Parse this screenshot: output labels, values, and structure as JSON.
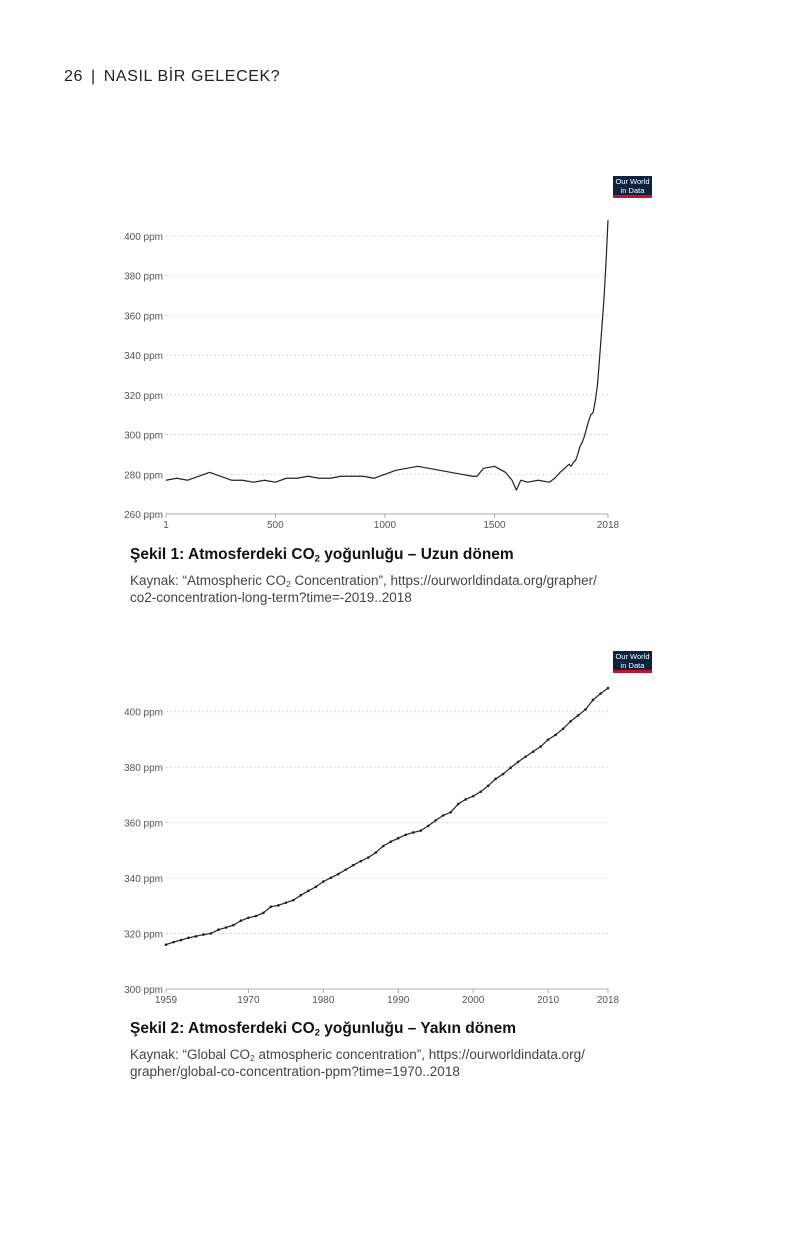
{
  "page": {
    "number": "26",
    "separator": "|",
    "running_title": "NASIL BİR GELECEK?"
  },
  "logo": {
    "line1": "Our World",
    "line2": "in Data"
  },
  "figure1": {
    "caption_prefix": "Şekil 1: Atmosferdeki CO",
    "caption_sub": "2",
    "caption_suffix": " yoğunluğu – Uzun dönem",
    "source_line1_prefix": "Kaynak: “Atmospheric CO",
    "source_line1_sub": "2",
    "source_line1_suffix": " Concentration”, https://ourworldindata.org/grapher/",
    "source_line2": "co2-concentration-long-term?time=-2019..2018"
  },
  "figure2": {
    "caption_prefix": "Şekil 2: Atmosferdeki CO",
    "caption_sub": "2",
    "caption_suffix": " yoğunluğu – Yakın dönem",
    "source_line1_prefix": "Kaynak: “Global CO",
    "source_line1_sub": "2",
    "source_line1_suffix": " atmospheric concentration”, https://ourworldindata.org/",
    "source_line2": "grapher/global-co-concentration-ppm?time=1970..2018"
  },
  "chart_data": [
    {
      "type": "line",
      "title": "",
      "xlabel": "",
      "ylabel": "",
      "xlim": [
        1,
        2018
      ],
      "ylim": [
        260,
        405
      ],
      "y_unit": "ppm",
      "x_ticks": [
        1,
        500,
        1000,
        1500,
        2018
      ],
      "y_ticks": [
        260,
        280,
        300,
        320,
        340,
        360,
        380,
        400
      ],
      "grid": "horizontal-dotted",
      "line_color": "#222222",
      "series": [
        {
          "x": [
            1,
            50,
            100,
            150,
            200,
            250,
            300,
            350,
            400,
            450,
            500,
            550,
            600,
            650,
            700,
            750,
            800,
            850,
            900,
            950,
            1000,
            1050,
            1100,
            1150,
            1200,
            1250,
            1300,
            1350,
            1400,
            1420,
            1450,
            1500,
            1550,
            1580,
            1600,
            1620,
            1650,
            1700,
            1750,
            1775,
            1800,
            1820,
            1840,
            1850,
            1860,
            1870,
            1880,
            1890,
            1900,
            1910,
            1920,
            1930,
            1940,
            1950,
            1960,
            1970,
            1980,
            1990,
            2000,
            2010,
            2018
          ],
          "y": [
            277,
            278,
            277,
            279,
            281,
            279,
            277,
            277,
            276,
            277,
            276,
            278,
            278,
            279,
            278,
            278,
            279,
            279,
            279,
            278,
            280,
            282,
            283,
            284,
            283,
            282,
            281,
            280,
            279,
            279,
            283,
            284,
            281,
            277,
            272,
            277,
            276,
            277,
            276,
            278,
            281,
            283,
            285,
            284,
            286,
            287,
            290,
            294,
            296,
            299,
            303,
            307,
            310,
            311,
            317,
            325,
            339,
            354,
            369,
            389,
            408
          ]
        }
      ]
    },
    {
      "type": "line",
      "title": "",
      "xlabel": "",
      "ylabel": "",
      "xlim": [
        1959,
        2018
      ],
      "ylim": [
        300,
        410
      ],
      "y_unit": "ppm",
      "x_ticks": [
        1959,
        1970,
        1980,
        1990,
        2000,
        2010,
        2018
      ],
      "y_ticks": [
        300,
        320,
        340,
        360,
        380,
        400
      ],
      "grid": "horizontal-dotted",
      "markers": true,
      "line_color": "#222222",
      "series": [
        {
          "x": [
            1959,
            1960,
            1961,
            1962,
            1963,
            1964,
            1965,
            1966,
            1967,
            1968,
            1969,
            1970,
            1971,
            1972,
            1973,
            1974,
            1975,
            1976,
            1977,
            1978,
            1979,
            1980,
            1981,
            1982,
            1983,
            1984,
            1985,
            1986,
            1987,
            1988,
            1989,
            1990,
            1991,
            1992,
            1993,
            1994,
            1995,
            1996,
            1997,
            1998,
            1999,
            2000,
            2001,
            2002,
            2003,
            2004,
            2005,
            2006,
            2007,
            2008,
            2009,
            2010,
            2011,
            2012,
            2013,
            2014,
            2015,
            2016,
            2017,
            2018
          ],
          "y": [
            315.97,
            316.91,
            317.64,
            318.45,
            318.99,
            319.62,
            320.04,
            321.38,
            322.16,
            323.04,
            324.62,
            325.68,
            326.32,
            327.45,
            329.68,
            330.18,
            331.11,
            332.04,
            333.83,
            335.4,
            336.84,
            338.75,
            340.11,
            341.45,
            343.05,
            344.65,
            346.12,
            347.42,
            349.19,
            351.57,
            353.12,
            354.39,
            355.61,
            356.45,
            357.1,
            358.83,
            360.82,
            362.61,
            363.73,
            366.7,
            368.38,
            369.55,
            371.14,
            373.28,
            375.8,
            377.52,
            379.8,
            381.9,
            383.79,
            385.6,
            387.43,
            389.9,
            391.65,
            393.85,
            396.52,
            398.65,
            400.83,
            404.24,
            406.55,
            408.52
          ]
        }
      ]
    }
  ]
}
